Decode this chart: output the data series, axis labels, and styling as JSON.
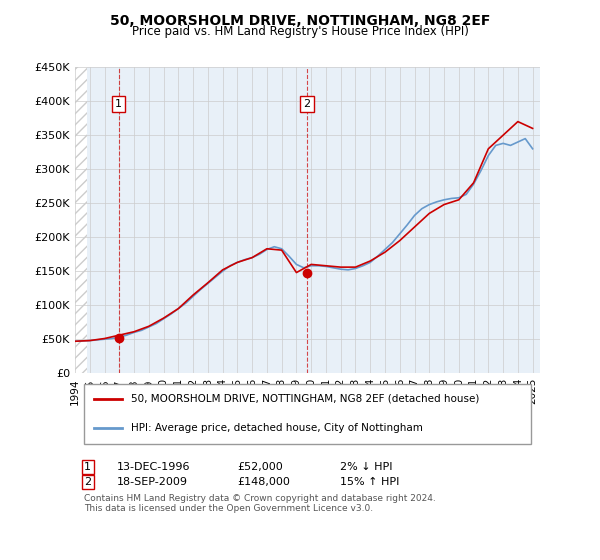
{
  "title": "50, MOORSHOLM DRIVE, NOTTINGHAM, NG8 2EF",
  "subtitle": "Price paid vs. HM Land Registry's House Price Index (HPI)",
  "legend_line1": "50, MOORSHOLM DRIVE, NOTTINGHAM, NG8 2EF (detached house)",
  "legend_line2": "HPI: Average price, detached house, City of Nottingham",
  "footnote": "Contains HM Land Registry data © Crown copyright and database right 2024.\nThis data is licensed under the Open Government Licence v3.0.",
  "sale_color": "#cc0000",
  "hpi_color": "#6699cc",
  "annotation1": {
    "num": "1",
    "date": "13-DEC-1996",
    "price": "£52,000",
    "pct": "2% ↓ HPI"
  },
  "annotation2": {
    "num": "2",
    "date": "18-SEP-2009",
    "price": "£148,000",
    "pct": "15% ↑ HPI"
  },
  "xmin": 1994,
  "xmax": 2025.5,
  "ymin": 0,
  "ymax": 450000,
  "yticks": [
    0,
    50000,
    100000,
    150000,
    200000,
    250000,
    300000,
    350000,
    400000,
    450000
  ],
  "ytick_labels": [
    "£0",
    "£50K",
    "£100K",
    "£150K",
    "£200K",
    "£250K",
    "£300K",
    "£350K",
    "£400K",
    "£450K"
  ],
  "xticks": [
    1994,
    1995,
    1996,
    1997,
    1998,
    1999,
    2000,
    2001,
    2002,
    2003,
    2004,
    2005,
    2006,
    2007,
    2008,
    2009,
    2010,
    2011,
    2012,
    2013,
    2014,
    2015,
    2016,
    2017,
    2018,
    2019,
    2020,
    2021,
    2022,
    2023,
    2024,
    2025
  ],
  "vline1_x": 1996.95,
  "vline2_x": 2009.72,
  "marker1_x": 1996.95,
  "marker1_y": 52000,
  "marker2_x": 2009.72,
  "marker2_y": 148000,
  "hpi_years": [
    1994,
    1994.5,
    1995,
    1995.5,
    1996,
    1996.5,
    1997,
    1997.5,
    1998,
    1998.5,
    1999,
    1999.5,
    2000,
    2000.5,
    2001,
    2001.5,
    2002,
    2002.5,
    2003,
    2003.5,
    2004,
    2004.5,
    2005,
    2005.5,
    2006,
    2006.5,
    2007,
    2007.5,
    2008,
    2008.5,
    2009,
    2009.5,
    2010,
    2010.5,
    2011,
    2011.5,
    2012,
    2012.5,
    2013,
    2013.5,
    2014,
    2014.5,
    2015,
    2015.5,
    2016,
    2016.5,
    2017,
    2017.5,
    2018,
    2018.5,
    2019,
    2019.5,
    2020,
    2020.5,
    2021,
    2021.5,
    2022,
    2022.5,
    2023,
    2023.5,
    2024,
    2024.5,
    2025
  ],
  "hpi_vals": [
    47000,
    47500,
    48000,
    49000,
    50000,
    51000,
    53000,
    56000,
    60000,
    63000,
    68000,
    73000,
    80000,
    87000,
    95000,
    103000,
    113000,
    123000,
    132000,
    141000,
    150000,
    158000,
    163000,
    167000,
    170000,
    175000,
    182000,
    186000,
    183000,
    172000,
    160000,
    155000,
    158000,
    158000,
    157000,
    155000,
    153000,
    152000,
    154000,
    158000,
    163000,
    172000,
    182000,
    192000,
    205000,
    218000,
    232000,
    242000,
    248000,
    252000,
    255000,
    257000,
    258000,
    263000,
    278000,
    298000,
    320000,
    335000,
    338000,
    335000,
    340000,
    345000,
    330000
  ],
  "sale_years": [
    1994,
    1995,
    1996,
    1997,
    1998,
    1999,
    2000,
    2001,
    2002,
    2003,
    2004,
    2005,
    2006,
    2007,
    2008,
    2009,
    2010,
    2011,
    2012,
    2013,
    2014,
    2015,
    2016,
    2017,
    2018,
    2019,
    2020,
    2021,
    2022,
    2023,
    2024,
    2025
  ],
  "sale_vals": [
    47000,
    48000,
    51000,
    56000,
    61000,
    69000,
    81000,
    95000,
    115000,
    133000,
    152000,
    163000,
    170000,
    183000,
    181000,
    148000,
    160000,
    158000,
    156000,
    156000,
    165000,
    178000,
    195000,
    215000,
    235000,
    248000,
    255000,
    280000,
    330000,
    350000,
    370000,
    360000
  ],
  "bg_color": "#e8f0f8",
  "hatch_color": "#cccccc",
  "grid_color": "#cccccc",
  "figsize": [
    6.0,
    5.6
  ],
  "dpi": 100
}
